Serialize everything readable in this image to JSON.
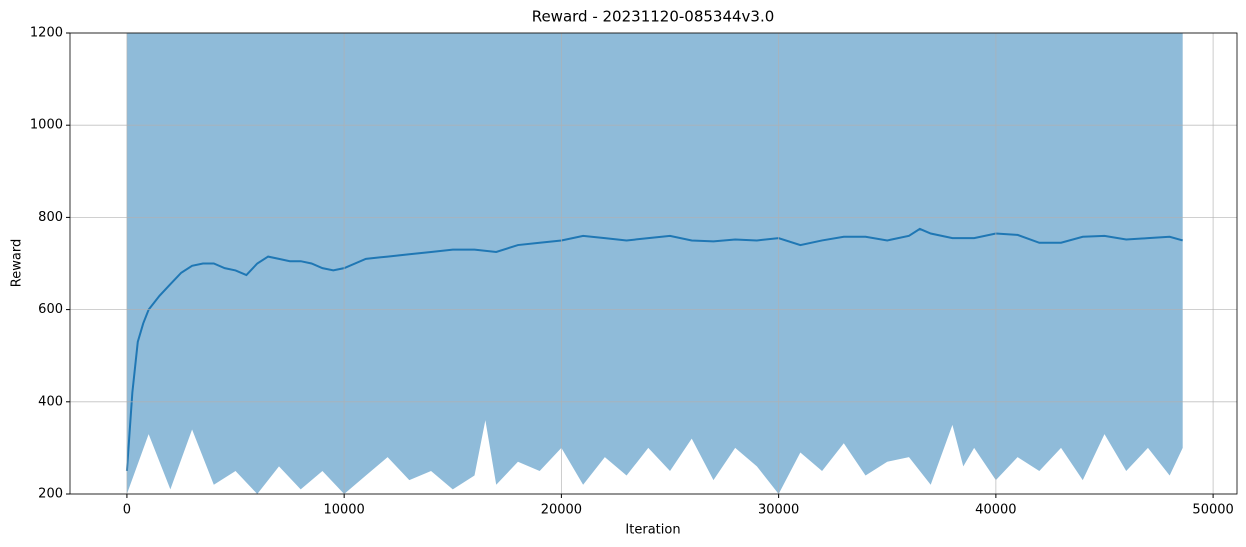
{
  "chart_data": {
    "type": "line",
    "title": "Reward - 20231120-085344v3.0",
    "xlabel": "Iteration",
    "ylabel": "Reward",
    "xlim": [
      -2620,
      51100
    ],
    "ylim": [
      200,
      1200
    ],
    "xticks": [
      0,
      10000,
      20000,
      30000,
      40000,
      50000
    ],
    "yticks": [
      200,
      400,
      600,
      800,
      1000,
      1200
    ],
    "grid": true,
    "series": [
      {
        "type": "area",
        "color": "#1f77b4",
        "alpha": 0.5,
        "x": [
          0,
          1000,
          2000,
          3000,
          4000,
          5000,
          6000,
          7000,
          8000,
          9000,
          10000,
          11000,
          12000,
          13000,
          14000,
          15000,
          16000,
          16500,
          17000,
          18000,
          19000,
          20000,
          21000,
          22000,
          23000,
          24000,
          25000,
          26000,
          27000,
          28000,
          29000,
          30000,
          31000,
          32000,
          33000,
          34000,
          35000,
          36000,
          37000,
          38000,
          38500,
          39000,
          40000,
          41000,
          42000,
          43000,
          44000,
          45000,
          46000,
          47000,
          48000,
          48600
        ],
        "upper": [
          1200,
          1200,
          1200,
          1200,
          1200,
          1200,
          1200,
          1200,
          1200,
          1200,
          1200,
          1200,
          1200,
          1200,
          1200,
          1200,
          1200,
          1200,
          1200,
          1200,
          1200,
          1200,
          1200,
          1200,
          1200,
          1200,
          1200,
          1200,
          1200,
          1200,
          1200,
          1200,
          1200,
          1200,
          1200,
          1200,
          1200,
          1200,
          1200,
          1200,
          1200,
          1200,
          1200,
          1200,
          1200,
          1200,
          1200,
          1200,
          1200,
          1200,
          1200,
          1200
        ],
        "lower": [
          200,
          330,
          210,
          340,
          220,
          250,
          200,
          260,
          210,
          250,
          200,
          240,
          280,
          230,
          250,
          210,
          240,
          360,
          220,
          270,
          250,
          300,
          220,
          280,
          240,
          300,
          250,
          320,
          230,
          300,
          260,
          200,
          290,
          250,
          310,
          240,
          270,
          280,
          220,
          350,
          260,
          300,
          230,
          280,
          250,
          300,
          230,
          330,
          250,
          300,
          240,
          300
        ]
      },
      {
        "type": "line",
        "color": "#1f77b4",
        "x": [
          0,
          250,
          500,
          750,
          1000,
          1500,
          2000,
          2500,
          3000,
          3500,
          4000,
          4500,
          5000,
          5500,
          6000,
          6500,
          7000,
          7500,
          8000,
          8500,
          9000,
          9500,
          10000,
          11000,
          12000,
          13000,
          14000,
          15000,
          16000,
          17000,
          18000,
          19000,
          20000,
          21000,
          22000,
          23000,
          24000,
          25000,
          26000,
          27000,
          28000,
          29000,
          30000,
          31000,
          32000,
          33000,
          34000,
          35000,
          36000,
          36500,
          37000,
          38000,
          39000,
          40000,
          41000,
          42000,
          43000,
          44000,
          45000,
          46000,
          47000,
          48000,
          48600
        ],
        "values": [
          250,
          420,
          530,
          570,
          600,
          630,
          655,
          680,
          695,
          700,
          700,
          690,
          685,
          675,
          700,
          715,
          710,
          705,
          705,
          700,
          690,
          685,
          690,
          710,
          715,
          720,
          725,
          730,
          730,
          725,
          740,
          745,
          750,
          760,
          755,
          750,
          755,
          760,
          750,
          748,
          752,
          750,
          755,
          740,
          750,
          758,
          758,
          750,
          760,
          775,
          765,
          755,
          755,
          765,
          762,
          745,
          745,
          758,
          760,
          752,
          755,
          758,
          750
        ]
      }
    ]
  }
}
